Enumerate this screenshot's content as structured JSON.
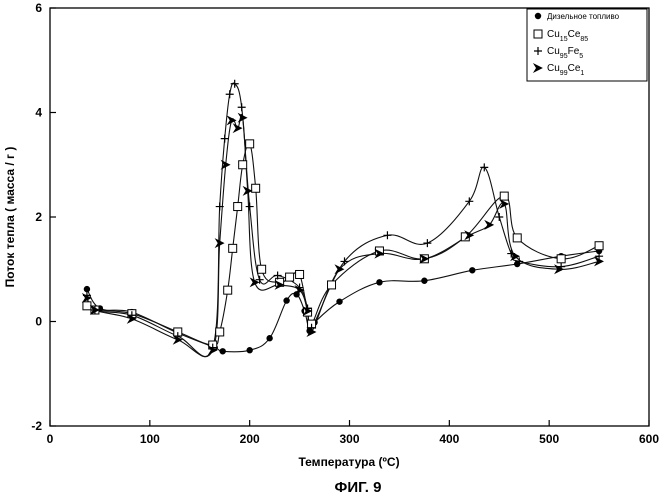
{
  "chart_data": {
    "type": "line",
    "title": "",
    "caption": "ФИГ. 9",
    "xlabel": "Температура  (ºC)",
    "ylabel": "Поток тепла  ( масса / г )",
    "xlim": [
      0,
      600
    ],
    "ylim": [
      -2,
      6
    ],
    "xticks": [
      0,
      100,
      200,
      300,
      400,
      500,
      600
    ],
    "yticks": [
      -2,
      0,
      2,
      4,
      6
    ],
    "grid": false,
    "legend_position": "top-right",
    "series": [
      {
        "name": "Дизельное топливо",
        "marker": "dot",
        "x": [
          37,
          50,
          82,
          128,
          165,
          173,
          200,
          220,
          237,
          247,
          255,
          260,
          265,
          290,
          330,
          375,
          423,
          468,
          512,
          550
        ],
        "y": [
          0.62,
          0.25,
          0.18,
          -0.22,
          -0.5,
          -0.57,
          -0.55,
          -0.32,
          0.4,
          0.52,
          0.2,
          -0.18,
          -0.02,
          0.38,
          0.75,
          0.78,
          0.98,
          1.1,
          1.25,
          1.35
        ]
      },
      {
        "name": "Cu15Ce85",
        "marker": "square",
        "x": [
          37,
          45,
          82,
          128,
          163,
          170,
          178,
          183,
          188,
          193,
          200,
          206,
          212,
          230,
          240,
          250,
          258,
          262,
          282,
          330,
          375,
          416,
          455,
          468,
          512,
          550
        ],
        "y": [
          0.3,
          0.22,
          0.15,
          -0.2,
          -0.45,
          -0.2,
          0.6,
          1.4,
          2.2,
          3.0,
          3.4,
          2.55,
          1.0,
          0.75,
          0.85,
          0.9,
          0.18,
          -0.05,
          0.7,
          1.35,
          1.2,
          1.62,
          2.4,
          1.6,
          1.2,
          1.45
        ]
      },
      {
        "name": "Cu95Fe5",
        "marker": "plus",
        "x": [
          37,
          45,
          82,
          128,
          163,
          170,
          175,
          180,
          185,
          192,
          200,
          210,
          228,
          250,
          258,
          262,
          295,
          338,
          378,
          420,
          435,
          450,
          462,
          470,
          512,
          550
        ],
        "y": [
          0.5,
          0.22,
          0.12,
          -0.28,
          -0.5,
          2.2,
          3.5,
          4.35,
          4.55,
          4.1,
          2.2,
          0.8,
          0.88,
          0.65,
          0.25,
          -0.12,
          1.15,
          1.65,
          1.5,
          2.3,
          2.95,
          2.0,
          1.3,
          1.15,
          1.05,
          1.25
        ]
      },
      {
        "name": "Cu99Ce1",
        "marker": "arrow",
        "x": [
          37,
          45,
          82,
          128,
          163,
          170,
          176,
          182,
          188,
          193,
          198,
          205,
          230,
          250,
          258,
          262,
          290,
          330,
          375,
          420,
          440,
          455,
          466,
          510,
          550
        ],
        "y": [
          0.45,
          0.22,
          0.05,
          -0.35,
          -0.55,
          1.5,
          3.0,
          3.85,
          3.7,
          3.9,
          2.5,
          0.75,
          0.7,
          0.6,
          0.2,
          -0.2,
          1.0,
          1.3,
          1.2,
          1.65,
          1.85,
          2.25,
          1.25,
          1.0,
          1.15
        ]
      }
    ]
  }
}
